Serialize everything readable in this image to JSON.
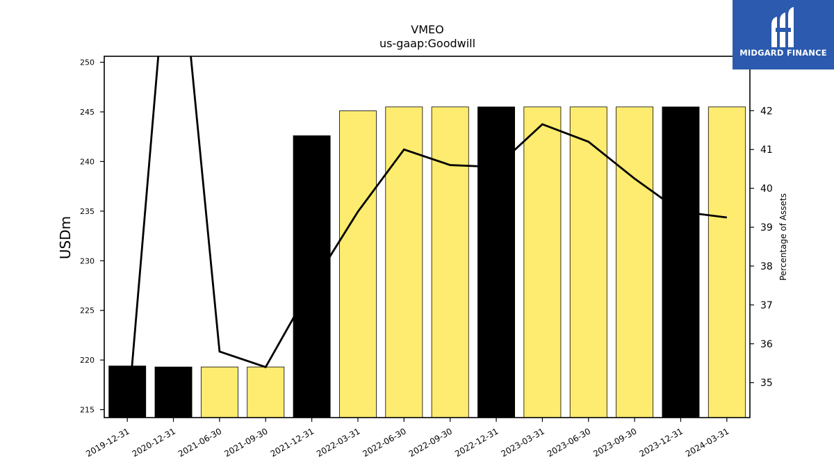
{
  "chart_data": {
    "type": "bar+line",
    "title": "VMEO",
    "subtitle": "us-gaap:Goodwill",
    "ylabel": "USDm",
    "y2label": "Percentage of Assets",
    "categories": [
      "2019-12-31",
      "2020-12-31",
      "2021-06-30",
      "2021-09-30",
      "2021-12-31",
      "2022-03-31",
      "2022-06-30",
      "2022-09-30",
      "2022-12-31",
      "2023-03-31",
      "2023-06-30",
      "2023-09-30",
      "2023-12-31",
      "2024-03-31"
    ],
    "series": [
      {
        "type": "bar",
        "axis": "left",
        "values": [
          219.4,
          219.3,
          219.3,
          219.3,
          242.6,
          245.1,
          245.5,
          245.5,
          245.5,
          245.5,
          245.5,
          245.5,
          245.5,
          245.5
        ],
        "colors": [
          "#000000",
          "#000000",
          "#fdec6f",
          "#fdec6f",
          "#000000",
          "#fdec6f",
          "#fdec6f",
          "#fdec6f",
          "#000000",
          "#fdec6f",
          "#fdec6f",
          "#fdec6f",
          "#000000",
          "#fdec6f"
        ]
      },
      {
        "type": "line",
        "axis": "right",
        "color": "#000000",
        "values": [
          34.0,
          48.0,
          35.8,
          35.4,
          37.5,
          39.4,
          41.0,
          40.6,
          40.55,
          41.65,
          41.2,
          40.25,
          39.4,
          39.25
        ]
      }
    ],
    "ylim": [
      214.2,
      250.6
    ],
    "y2lim": [
      34.1,
      43.4
    ],
    "yticks": [
      215,
      220,
      225,
      230,
      235,
      240,
      245,
      250
    ],
    "y2ticks": [
      35,
      36,
      37,
      38,
      39,
      40,
      41,
      42
    ],
    "grid": false,
    "legend": "none"
  },
  "logo": {
    "text": "MIDGARD FINANCE",
    "bg_color": "#2b5aae"
  }
}
